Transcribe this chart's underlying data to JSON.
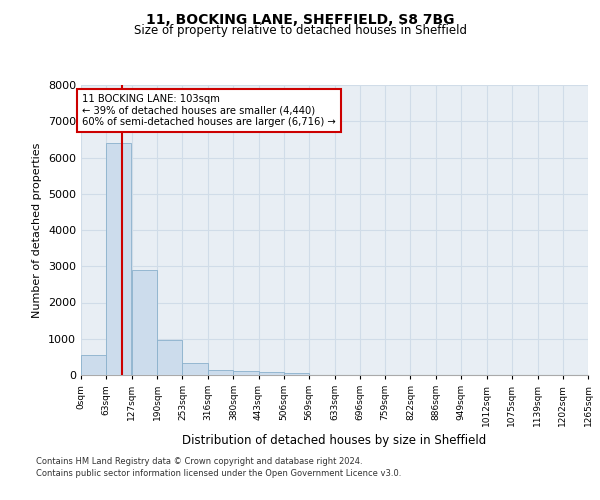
{
  "title1": "11, BOCKING LANE, SHEFFIELD, S8 7BG",
  "title2": "Size of property relative to detached houses in Sheffield",
  "xlabel": "Distribution of detached houses by size in Sheffield",
  "ylabel": "Number of detached properties",
  "bar_color": "#ccdcec",
  "bar_edge_color": "#8ab0cc",
  "grid_color": "#d0dce8",
  "background_color": "#e8eef4",
  "bins": [
    0,
    63,
    127,
    190,
    253,
    316,
    380,
    443,
    506,
    569,
    633,
    696,
    759,
    822,
    886,
    949,
    1012,
    1075,
    1139,
    1202,
    1265
  ],
  "bin_labels": [
    "0sqm",
    "63sqm",
    "127sqm",
    "190sqm",
    "253sqm",
    "316sqm",
    "380sqm",
    "443sqm",
    "506sqm",
    "569sqm",
    "633sqm",
    "696sqm",
    "759sqm",
    "822sqm",
    "886sqm",
    "949sqm",
    "1012sqm",
    "1075sqm",
    "1139sqm",
    "1202sqm",
    "1265sqm"
  ],
  "bar_heights": [
    550,
    6400,
    2900,
    975,
    325,
    150,
    100,
    75,
    50,
    0,
    0,
    0,
    0,
    0,
    0,
    0,
    0,
    0,
    0,
    0
  ],
  "property_size": 103,
  "red_line_color": "#cc0000",
  "annotation_line1": "11 BOCKING LANE: 103sqm",
  "annotation_line2": "← 39% of detached houses are smaller (4,440)",
  "annotation_line3": "60% of semi-detached houses are larger (6,716) →",
  "annotation_box_color": "#ffffff",
  "annotation_border_color": "#cc0000",
  "ylim": [
    0,
    8000
  ],
  "yticks": [
    0,
    1000,
    2000,
    3000,
    4000,
    5000,
    6000,
    7000,
    8000
  ],
  "footer1": "Contains HM Land Registry data © Crown copyright and database right 2024.",
  "footer2": "Contains public sector information licensed under the Open Government Licence v3.0."
}
